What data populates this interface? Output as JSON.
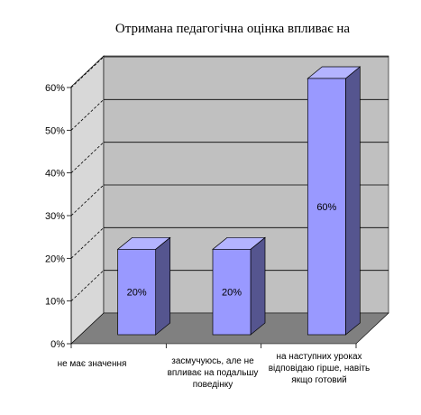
{
  "chart_data": {
    "type": "bar",
    "title": "Отримана педагогічна оцінка впливає на",
    "categories": [
      "не має значення",
      "засмучуюсь, але не впливає на подальшу поведінку",
      "на наступних уроках відповідаю гірше, навіть якщо готовий"
    ],
    "values": [
      20,
      20,
      60
    ],
    "data_labels": [
      "20%",
      "20%",
      "60%"
    ],
    "y_ticks": [
      "0%",
      "10%",
      "20%",
      "30%",
      "40%",
      "50%",
      "60%"
    ],
    "ylim": [
      0,
      60
    ],
    "grid": true,
    "legend": "none",
    "three_d": true,
    "colors": {
      "bar_front": "#9999ff",
      "bar_side": "#55558f",
      "bar_top": "#b4b4ff",
      "back_wall": "#c0c0c0",
      "side_wall": "#d8d8d8",
      "floor": "#808080",
      "gridline": "#000000"
    }
  }
}
